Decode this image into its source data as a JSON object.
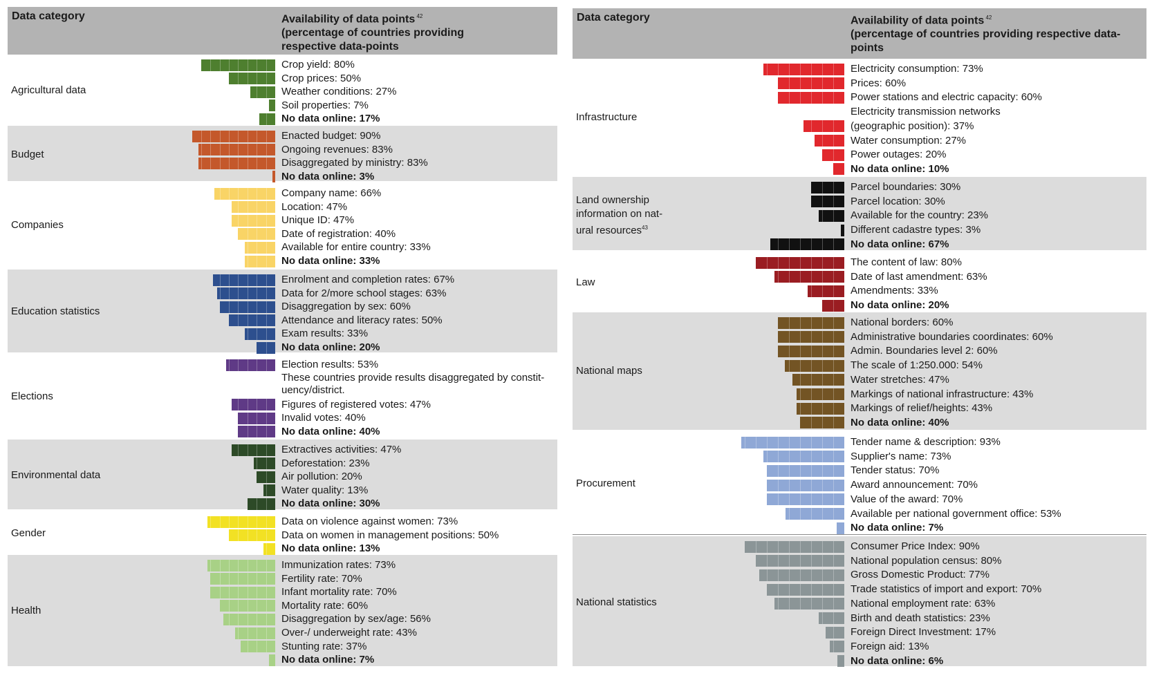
{
  "headers": {
    "left": {
      "category": "Data category",
      "availability_line1": "Availability of data points",
      "availability_sup": "42",
      "availability_rest": "(percentage of countries providing\nrespective data-points"
    },
    "right": {
      "category": "Data category",
      "availability_line1": "Availability of data points",
      "availability_sup": "42",
      "availability_rest": "(percentage of countries providing respective data-\npoints"
    }
  },
  "chart_data": [
    {
      "type": "bar",
      "orientation": "horizontal-left",
      "panel": "left",
      "unit": "%",
      "categories": [
        {
          "name": "Agricultural data",
          "color": "#4e7f2f",
          "items": [
            {
              "label": "Crop yield: 80%",
              "value": 80
            },
            {
              "label": "Crop prices: 50%",
              "value": 50
            },
            {
              "label": "Weather conditions: 27%",
              "value": 27
            },
            {
              "label": "Soil properties: 7%",
              "value": 7
            },
            {
              "label": "No data online: 17%",
              "value": 17,
              "bold": true
            }
          ]
        },
        {
          "name": "Budget",
          "color": "#c4582b",
          "items": [
            {
              "label": "Enacted budget: 90%",
              "value": 90
            },
            {
              "label": "Ongoing revenues: 83%",
              "value": 83
            },
            {
              "label": "Disaggregated by ministry: 83%",
              "value": 83
            },
            {
              "label": "No data online: 3%",
              "value": 3,
              "bold": true
            }
          ]
        },
        {
          "name": "Companies",
          "color": "#f9d466",
          "items": [
            {
              "label": "Company name: 66%",
              "value": 66
            },
            {
              "label": "Location: 47%",
              "value": 47
            },
            {
              "label": "Unique ID: 47%",
              "value": 47
            },
            {
              "label": "Date of registration: 40%",
              "value": 40
            },
            {
              "label": "Available for entire country: 33%",
              "value": 33
            },
            {
              "label": "No data online: 33%",
              "value": 33,
              "bold": true
            }
          ]
        },
        {
          "name": "Education statistics",
          "color": "#2d4f8e",
          "items": [
            {
              "label": "Enrolment and completion rates: 67%",
              "value": 67
            },
            {
              "label": "Data for 2/more school stages: 63%",
              "value": 63
            },
            {
              "label": "Disaggregation by sex: 60%",
              "value": 60
            },
            {
              "label": "Attendance and literacy rates: 50%",
              "value": 50
            },
            {
              "label": "Exam results: 33%",
              "value": 33
            },
            {
              "label": "No data online: 20%",
              "value": 20,
              "bold": true
            }
          ]
        },
        {
          "name": "Elections",
          "color": "#5f3a86",
          "items": [
            {
              "label": "Election results: 53%",
              "value": 53
            },
            {
              "label": "These countries provide results disaggregated by constit-\nuency/district.",
              "value": null,
              "note": true
            },
            {
              "label": "Figures of registered votes: 47%",
              "value": 47
            },
            {
              "label": "Invalid votes: 40%",
              "value": 40
            },
            {
              "label": "No data online: 40%",
              "value": 40,
              "bold": true
            }
          ]
        },
        {
          "name": "Environmental data",
          "color": "#2d4a27",
          "items": [
            {
              "label": "Extractives activities: 47%",
              "value": 47
            },
            {
              "label": "Deforestation: 23%",
              "value": 23
            },
            {
              "label": "Air pollution: 20%",
              "value": 20
            },
            {
              "label": "Water quality: 13%",
              "value": 13
            },
            {
              "label": "No data online: 30%",
              "value": 30,
              "bold": true
            }
          ]
        },
        {
          "name": "Gender",
          "color": "#f2e124",
          "items": [
            {
              "label": "Data on violence against women: 73%",
              "value": 73
            },
            {
              "label": "Data on women in management positions: 50%",
              "value": 50
            },
            {
              "label": "No data online: 13%",
              "value": 13,
              "bold": true
            }
          ]
        },
        {
          "name": "Health",
          "color": "#a8d186",
          "items": [
            {
              "label": "Immunization rates: 73%",
              "value": 73
            },
            {
              "label": "Fertility rate: 70%",
              "value": 70
            },
            {
              "label": "Infant mortality rate: 70%",
              "value": 70
            },
            {
              "label": "Mortality rate: 60%",
              "value": 60
            },
            {
              "label": "Disaggregation by sex/age: 56%",
              "value": 56
            },
            {
              "label": "Over-/ underweight rate: 43%",
              "value": 43
            },
            {
              "label": "Stunting rate: 37%",
              "value": 37
            },
            {
              "label": "No data online: 7%",
              "value": 7,
              "bold": true
            }
          ]
        }
      ]
    },
    {
      "type": "bar",
      "orientation": "horizontal-left",
      "panel": "right",
      "unit": "%",
      "categories": [
        {
          "name": "Infrastructure",
          "color": "#e1282d",
          "items": [
            {
              "label": "Electricity consumption: 73%",
              "value": 73
            },
            {
              "label": "Prices: 60%",
              "value": 60
            },
            {
              "label": "Power stations and electric capacity: 60%",
              "value": 60
            },
            {
              "label": "Electricity transmission networks",
              "value": null,
              "note": true
            },
            {
              "label": "(geographic position): 37%",
              "value": 37
            },
            {
              "label": "Water consumption: 27%",
              "value": 27
            },
            {
              "label": "Power outages: 20%",
              "value": 20
            },
            {
              "label": "No data online: 10%",
              "value": 10,
              "bold": true
            }
          ]
        },
        {
          "name": "Land ownership\ninformation on nat-\nural resources",
          "name_sup": "43",
          "color": "#111111",
          "items": [
            {
              "label": "Parcel boundaries: 30%",
              "value": 30
            },
            {
              "label": "Parcel location: 30%",
              "value": 30
            },
            {
              "label": "Available for the country: 23%",
              "value": 23
            },
            {
              "label": "Different cadastre types: 3%",
              "value": 3
            },
            {
              "label": "No data online: 67%",
              "value": 67,
              "bold": true
            }
          ]
        },
        {
          "name": "Law",
          "color": "#9a1d22",
          "items": [
            {
              "label": "The content of law: 80%",
              "value": 80
            },
            {
              "label": "Date of last amendment: 63%",
              "value": 63
            },
            {
              "label": "Amendments: 33%",
              "value": 33
            },
            {
              "label": "No data online: 20%",
              "value": 20,
              "bold": true
            }
          ]
        },
        {
          "name": "National maps",
          "color": "#735424",
          "items": [
            {
              "label": "National borders: 60%",
              "value": 60
            },
            {
              "label": "Administrative boundaries coordinates: 60%",
              "value": 60
            },
            {
              "label": "Admin. Boundaries level 2: 60%",
              "value": 60
            },
            {
              "label": "The scale of 1:250.000: 54%",
              "value": 54
            },
            {
              "label": "Water stretches: 47%",
              "value": 47
            },
            {
              "label": "Markings of national infrastructure: 43%",
              "value": 43
            },
            {
              "label": "Markings of relief/heights: 43%",
              "value": 43
            },
            {
              "label": "No data online: 40%",
              "value": 40,
              "bold": true
            }
          ]
        },
        {
          "name": "Procurement",
          "color": "#8fa8d6",
          "items": [
            {
              "label": "Tender name & description: 93%",
              "value": 93
            },
            {
              "label": "Supplier's name: 73%",
              "value": 73
            },
            {
              "label": "Tender status: 70%",
              "value": 70
            },
            {
              "label": "Award announcement: 70%",
              "value": 70
            },
            {
              "label": "Value of the award: 70%",
              "value": 70
            },
            {
              "label": "Available per national government office: 53%",
              "value": 53
            },
            {
              "label": "No data online: 7%",
              "value": 7,
              "bold": true
            }
          ]
        },
        {
          "name": "National statistics",
          "color": "#8b9597",
          "items": [
            {
              "label": "Consumer Price Index: 90%",
              "value": 90
            },
            {
              "label": "National population census: 80%",
              "value": 80
            },
            {
              "label": "Gross Domestic Product: 77%",
              "value": 77
            },
            {
              "label": "Trade statistics of import and export: 70%",
              "value": 70
            },
            {
              "label": "National employment rate: 63%",
              "value": 63
            },
            {
              "label": "Birth and death statistics: 23%",
              "value": 23
            },
            {
              "label": "Foreign Direct Investment: 17%",
              "value": 17
            },
            {
              "label": "Foreign aid: 13%",
              "value": 13
            },
            {
              "label": "No data online: 6%",
              "value": 6,
              "bold": true
            }
          ]
        }
      ]
    }
  ]
}
